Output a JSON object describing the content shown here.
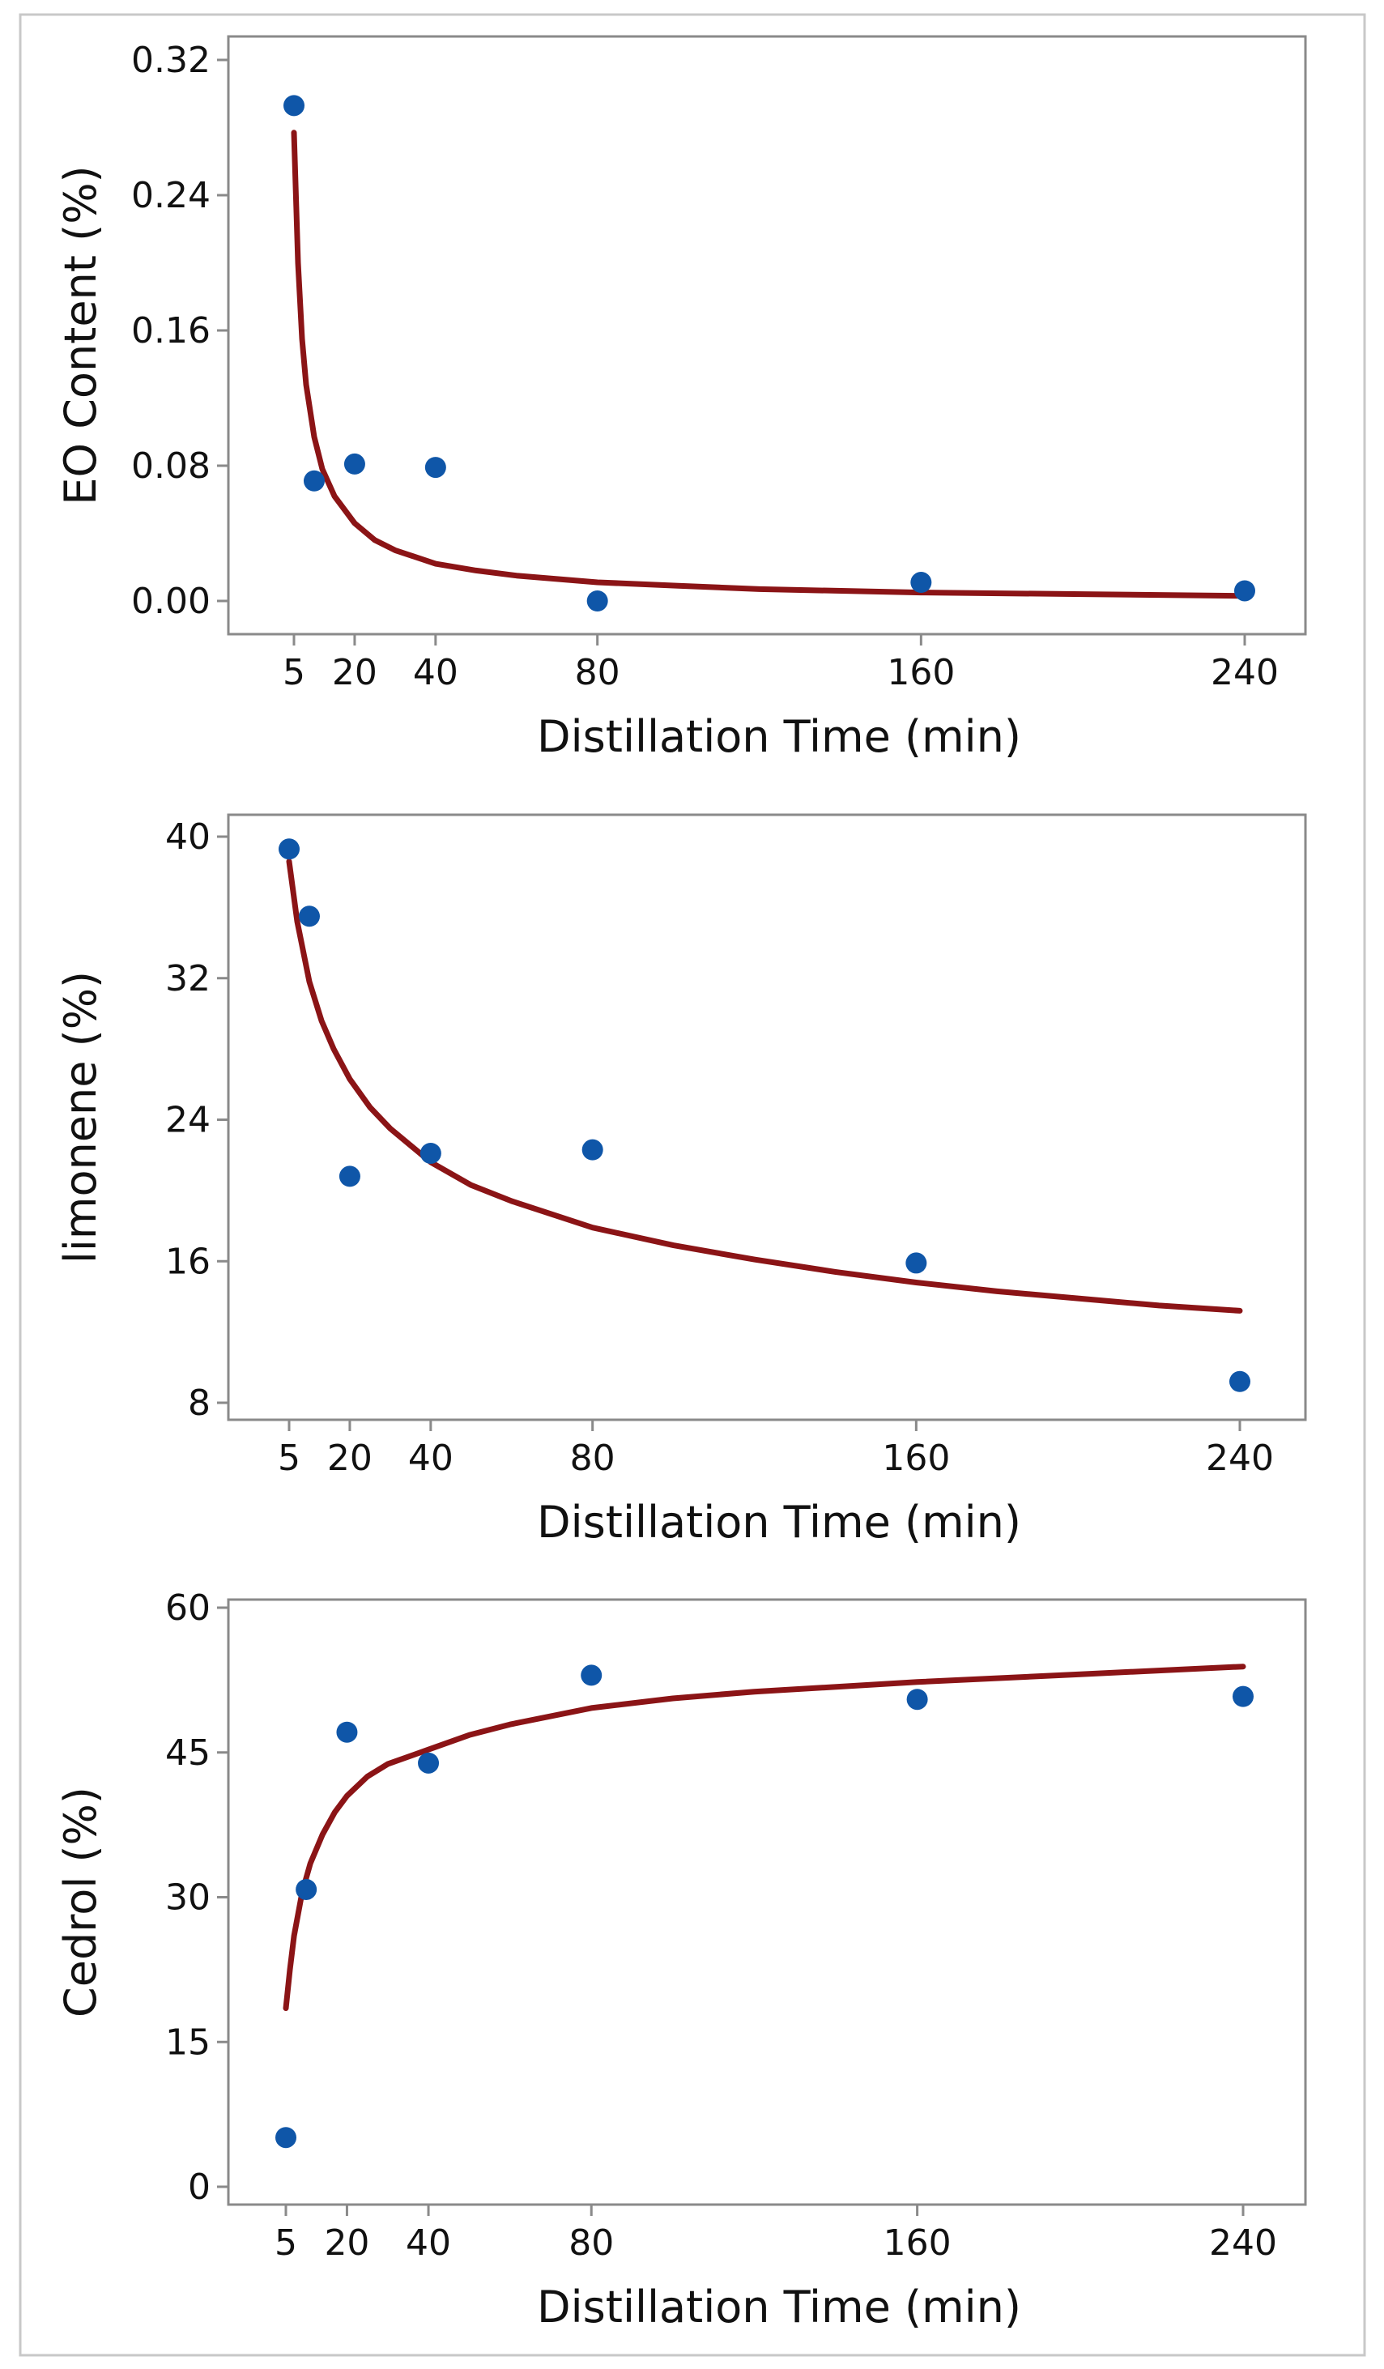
{
  "chart_data": [
    {
      "type": "scatter",
      "xlabel": "Distillation Time (min)",
      "ylabel": "EO Content (%)",
      "xticks": [
        5,
        20,
        40,
        80,
        160,
        240
      ],
      "xlim": [
        5,
        240
      ],
      "yticks": [
        "0.00",
        "0.08",
        "0.16",
        "0.24",
        "0.32"
      ],
      "ylim": [
        0,
        0.32
      ],
      "grid": false,
      "legend": "none",
      "series": [
        {
          "kind": "points",
          "color": "#0f56a8",
          "x": [
            5,
            10,
            20,
            40,
            80,
            160,
            240
          ],
          "y": [
            0.293,
            0.071,
            0.081,
            0.079,
            0.0,
            0.011,
            0.006
          ]
        },
        {
          "kind": "fit-curve",
          "color": "#8b1416",
          "x": [
            5,
            6,
            7,
            8,
            10,
            12,
            15,
            20,
            25,
            30,
            40,
            50,
            60,
            80,
            100,
            120,
            160,
            200,
            240
          ],
          "y": [
            0.277,
            0.2,
            0.155,
            0.128,
            0.097,
            0.078,
            0.062,
            0.046,
            0.036,
            0.03,
            0.022,
            0.018,
            0.015,
            0.011,
            0.009,
            0.007,
            0.005,
            0.004,
            0.003
          ]
        }
      ]
    },
    {
      "type": "scatter",
      "xlabel": "Distillation Time (min)",
      "ylabel": "limonene (%)",
      "xticks": [
        5,
        20,
        40,
        80,
        160,
        240
      ],
      "xlim": [
        5,
        240
      ],
      "yticks": [
        "8",
        "16",
        "24",
        "32",
        "40"
      ],
      "ylim": [
        8,
        40
      ],
      "grid": false,
      "legend": "none",
      "series": [
        {
          "kind": "points",
          "color": "#0f56a8",
          "x": [
            5,
            10,
            20,
            40,
            80,
            160,
            240
          ],
          "y": [
            39.3,
            35.5,
            20.8,
            22.1,
            22.3,
            15.9,
            9.2
          ]
        },
        {
          "kind": "fit-curve",
          "color": "#8b1416",
          "x": [
            5,
            7,
            10,
            13,
            16,
            20,
            25,
            30,
            40,
            50,
            60,
            80,
            100,
            120,
            140,
            160,
            180,
            200,
            220,
            240
          ],
          "y": [
            38.6,
            35.2,
            31.8,
            29.6,
            28.0,
            26.3,
            24.7,
            23.5,
            21.6,
            20.3,
            19.4,
            17.9,
            16.9,
            16.1,
            15.4,
            14.8,
            14.3,
            13.9,
            13.5,
            13.2
          ]
        }
      ]
    },
    {
      "type": "scatter",
      "xlabel": "Distillation Time (min)",
      "ylabel": "Cedrol (%)",
      "xticks": [
        5,
        20,
        40,
        80,
        160,
        240
      ],
      "xlim": [
        5,
        240
      ],
      "yticks": [
        "0",
        "15",
        "30",
        "45",
        "60"
      ],
      "ylim": [
        0,
        60
      ],
      "grid": false,
      "legend": "none",
      "series": [
        {
          "kind": "points",
          "color": "#0f56a8",
          "x": [
            5,
            10,
            20,
            40,
            80,
            160,
            240
          ],
          "y": [
            5.1,
            30.8,
            47.1,
            43.9,
            53.0,
            50.5,
            50.8
          ]
        },
        {
          "kind": "fit-curve",
          "color": "#8b1416",
          "x": [
            5,
            6,
            7,
            9,
            11,
            14,
            17,
            20,
            25,
            30,
            40,
            50,
            60,
            80,
            100,
            120,
            160,
            200,
            240
          ],
          "y": [
            18.5,
            22.5,
            26.0,
            30.5,
            33.5,
            36.5,
            38.8,
            40.5,
            42.5,
            43.8,
            45.3,
            46.8,
            47.9,
            49.6,
            50.6,
            51.3,
            52.3,
            53.1,
            53.9
          ]
        }
      ]
    }
  ]
}
